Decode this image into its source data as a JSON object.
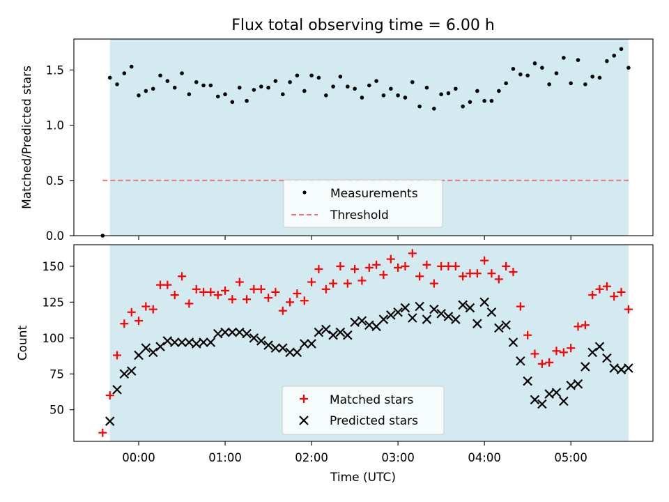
{
  "chart_data": [
    {
      "type": "scatter",
      "title": "Flux total observing time = 6.00 h",
      "ylabel": "Matched/Predicted stars",
      "xlabel": "",
      "xlim": [
        -0.75,
        5.95
      ],
      "ylim": [
        0.0,
        1.78
      ],
      "yticks": [
        0.0,
        0.5,
        1.0,
        1.5
      ],
      "ytick_labels": [
        "0.0",
        "0.5",
        "1.0",
        "1.5"
      ],
      "observing_window": [
        -0.333,
        5.667
      ],
      "colors": {
        "window": "#d3eaf0",
        "points": "#000000",
        "threshold": "#f07373"
      },
      "threshold": {
        "label": "Threshold",
        "value": 0.5,
        "style": "dashed"
      },
      "series": [
        {
          "name": "Measurements",
          "x": [
            -0.417,
            -0.333,
            -0.25,
            -0.167,
            -0.083,
            0.0,
            0.083,
            0.167,
            0.25,
            0.333,
            0.417,
            0.5,
            0.583,
            0.667,
            0.75,
            0.833,
            0.917,
            1.0,
            1.083,
            1.167,
            1.25,
            1.333,
            1.417,
            1.5,
            1.583,
            1.667,
            1.75,
            1.833,
            1.917,
            2.0,
            2.083,
            2.167,
            2.25,
            2.333,
            2.417,
            2.5,
            2.583,
            2.667,
            2.75,
            2.833,
            2.917,
            3.0,
            3.083,
            3.167,
            3.25,
            3.333,
            3.417,
            3.5,
            3.583,
            3.667,
            3.75,
            3.833,
            3.917,
            4.0,
            4.083,
            4.167,
            4.25,
            4.333,
            4.417,
            4.5,
            4.583,
            4.667,
            4.75,
            4.833,
            4.917,
            5.0,
            5.083,
            5.167,
            5.25,
            5.333,
            5.417,
            5.5,
            5.583,
            5.667
          ],
          "values": [
            0.0,
            1.43,
            1.37,
            1.47,
            1.53,
            1.27,
            1.31,
            1.33,
            1.45,
            1.4,
            1.34,
            1.47,
            1.28,
            1.39,
            1.36,
            1.36,
            1.26,
            1.28,
            1.21,
            1.34,
            1.22,
            1.32,
            1.35,
            1.34,
            1.4,
            1.28,
            1.39,
            1.45,
            1.31,
            1.45,
            1.43,
            1.27,
            1.35,
            1.44,
            1.35,
            1.33,
            1.25,
            1.36,
            1.4,
            1.27,
            1.33,
            1.27,
            1.25,
            1.39,
            1.17,
            1.34,
            1.15,
            1.28,
            1.29,
            1.33,
            1.17,
            1.21,
            1.31,
            1.22,
            1.22,
            1.31,
            1.38,
            1.51,
            1.46,
            1.45,
            1.56,
            1.52,
            1.37,
            1.47,
            1.61,
            1.38,
            1.59,
            1.37,
            1.44,
            1.43,
            1.58,
            1.63,
            1.69,
            1.52
          ]
        }
      ],
      "legend": {
        "position": "lower center",
        "entries": [
          "Measurements",
          "Threshold"
        ]
      }
    },
    {
      "type": "scatter",
      "title": "",
      "xlabel": "Time (UTC)",
      "ylabel": "Count",
      "xlim": [
        -0.75,
        5.95
      ],
      "ylim": [
        28,
        165
      ],
      "xticks": [
        0,
        1,
        2,
        3,
        4,
        5
      ],
      "xtick_labels": [
        "00:00",
        "01:00",
        "02:00",
        "03:00",
        "04:00",
        "05:00"
      ],
      "yticks": [
        50,
        75,
        100,
        125,
        150
      ],
      "ytick_labels": [
        "50",
        "75",
        "100",
        "125",
        "150"
      ],
      "observing_window": [
        -0.333,
        5.667
      ],
      "colors": {
        "window": "#d3eaf0",
        "matched": "#ff0000",
        "predicted": "#000000"
      },
      "x": [
        -0.417,
        -0.333,
        -0.25,
        -0.167,
        -0.083,
        0.0,
        0.083,
        0.167,
        0.25,
        0.333,
        0.417,
        0.5,
        0.583,
        0.667,
        0.75,
        0.833,
        0.917,
        1.0,
        1.083,
        1.167,
        1.25,
        1.333,
        1.417,
        1.5,
        1.583,
        1.667,
        1.75,
        1.833,
        1.917,
        2.0,
        2.083,
        2.167,
        2.25,
        2.333,
        2.417,
        2.5,
        2.583,
        2.667,
        2.75,
        2.833,
        2.917,
        3.0,
        3.083,
        3.167,
        3.25,
        3.333,
        3.417,
        3.5,
        3.583,
        3.667,
        3.75,
        3.833,
        3.917,
        4.0,
        4.083,
        4.167,
        4.25,
        4.333,
        4.417,
        4.5,
        4.583,
        4.667,
        4.75,
        4.833,
        4.917,
        5.0,
        5.083,
        5.167,
        5.25,
        5.333,
        5.417,
        5.5,
        5.583,
        5.667
      ],
      "series": [
        {
          "name": "Matched stars",
          "marker": "plus",
          "values": [
            34,
            60,
            88,
            110,
            118,
            112,
            122,
            120,
            137,
            137,
            130,
            143,
            124,
            134,
            132,
            132,
            130,
            133,
            127,
            139,
            127,
            134,
            134,
            128,
            132,
            119,
            125,
            131,
            126,
            139,
            148,
            134,
            138,
            150,
            138,
            148,
            140,
            149,
            151,
            144,
            155,
            149,
            150,
            159,
            143,
            151,
            138,
            150,
            150,
            150,
            143,
            145,
            145,
            154,
            145,
            141,
            150,
            146,
            122,
            102,
            89,
            82,
            83,
            91,
            90,
            93,
            108,
            109,
            130,
            134,
            136,
            129,
            132,
            120
          ]
        },
        {
          "name": "Predicted stars",
          "marker": "x",
          "values": [
            null,
            42,
            64,
            75,
            77,
            88,
            93,
            90,
            94,
            98,
            97,
            97,
            97,
            96,
            97,
            97,
            103,
            104,
            104,
            104,
            103,
            100,
            98,
            95,
            93,
            93,
            90,
            90,
            96,
            96,
            104,
            106,
            102,
            104,
            102,
            111,
            112,
            109,
            108,
            113,
            116,
            118,
            121,
            114,
            122,
            113,
            120,
            117,
            115,
            113,
            123,
            121,
            110,
            125,
            118,
            107,
            109,
            97,
            84,
            70,
            57,
            54,
            61,
            62,
            56,
            67,
            68,
            80,
            90,
            94,
            86,
            79,
            78,
            79
          ]
        }
      ],
      "legend": {
        "position": "lower center",
        "entries": [
          "Matched stars",
          "Predicted stars"
        ]
      }
    }
  ]
}
